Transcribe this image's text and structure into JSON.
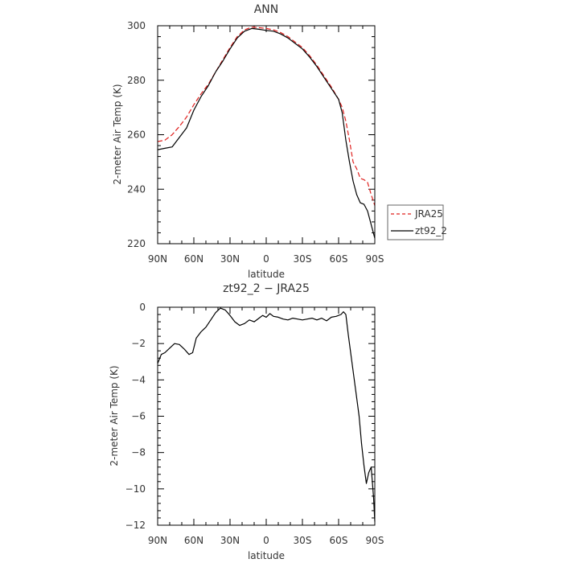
{
  "chart_data": [
    {
      "type": "line",
      "title": "ANN",
      "xlabel": "latitude",
      "ylabel": "2-meter Air Temp (K)",
      "xlim": [
        90,
        -90
      ],
      "ylim": [
        220,
        300
      ],
      "xticks": [
        90,
        60,
        30,
        0,
        -30,
        -60,
        -90
      ],
      "xticklabels": [
        "90N",
        "60N",
        "30N",
        "0",
        "30S",
        "60S",
        "90S"
      ],
      "yticks": [
        220,
        240,
        260,
        280,
        300
      ],
      "yticklabels": [
        "220",
        "240",
        "260",
        "280",
        "300"
      ],
      "legend": "right, outside",
      "series": [
        {
          "name": "JRA25",
          "color": "#e0211f",
          "dash": "dashed",
          "x": [
            90,
            84,
            78,
            72,
            66,
            60,
            54,
            48,
            42,
            36,
            30,
            24,
            18,
            12,
            6,
            0,
            -6,
            -12,
            -18,
            -24,
            -30,
            -36,
            -42,
            -48,
            -54,
            -60,
            -63,
            -66,
            -69,
            -72,
            -75,
            -78,
            -81,
            -84,
            -87,
            -90
          ],
          "y": [
            257.5,
            258,
            260,
            263,
            266.5,
            271,
            275,
            278.5,
            283,
            287.5,
            292,
            296,
            298.5,
            299.5,
            299.3,
            299,
            298.5,
            297.5,
            296,
            294,
            292,
            289,
            285.5,
            281.5,
            277.5,
            273,
            270,
            265,
            258,
            250,
            247.5,
            244,
            243.5,
            242.5,
            238,
            234
          ]
        },
        {
          "name": "zt92_2",
          "color": "#000000",
          "dash": "solid",
          "x": [
            90,
            84,
            78,
            72,
            66,
            60,
            54,
            48,
            42,
            36,
            30,
            24,
            18,
            12,
            6,
            0,
            -6,
            -12,
            -18,
            -24,
            -30,
            -36,
            -42,
            -48,
            -54,
            -60,
            -63,
            -66,
            -69,
            -72,
            -75,
            -78,
            -81,
            -84,
            -87,
            -90
          ],
          "y": [
            254.5,
            255,
            255.5,
            259,
            262.5,
            269,
            274,
            278,
            283,
            287,
            291.5,
            295.5,
            298,
            299,
            298.7,
            298.3,
            298,
            297,
            295.5,
            293.5,
            291.5,
            288.5,
            285,
            281,
            277,
            273,
            268,
            258,
            250,
            243,
            238,
            235,
            234.5,
            232,
            227,
            222
          ]
        }
      ]
    },
    {
      "type": "line",
      "title": "zt92_2 − JRA25",
      "xlabel": "latitude",
      "ylabel": "2-meter Air Temp (K)",
      "xlim": [
        90,
        -90
      ],
      "ylim": [
        -12,
        0
      ],
      "xticks": [
        90,
        60,
        30,
        0,
        -30,
        -60,
        -90
      ],
      "xticklabels": [
        "90N",
        "60N",
        "30N",
        "0",
        "30S",
        "60S",
        "90S"
      ],
      "yticks": [
        -12,
        -10,
        -8,
        -6,
        -4,
        -2,
        0
      ],
      "yticklabels": [
        "−12",
        "−10",
        "−8",
        "−6",
        "−4",
        "−2",
        "0"
      ],
      "series": [
        {
          "color": "#000000",
          "dash": "solid",
          "x": [
            90,
            87,
            84,
            80,
            76,
            72,
            68,
            64,
            61,
            58,
            54,
            50,
            46,
            42,
            38,
            34,
            30,
            26,
            22,
            18,
            14,
            10,
            6,
            3,
            0,
            -3,
            -6,
            -10,
            -14,
            -18,
            -22,
            -26,
            -30,
            -34,
            -38,
            -42,
            -46,
            -50,
            -54,
            -58,
            -62,
            -64,
            -66,
            -68,
            -71,
            -74,
            -77,
            -79,
            -81,
            -83,
            -85,
            -87,
            -89,
            -90
          ],
          "y": [
            -3.1,
            -2.6,
            -2.5,
            -2.25,
            -2.0,
            -2.05,
            -2.3,
            -2.6,
            -2.5,
            -1.7,
            -1.35,
            -1.1,
            -0.7,
            -0.3,
            -0.05,
            -0.15,
            -0.45,
            -0.8,
            -1.0,
            -0.9,
            -0.7,
            -0.8,
            -0.6,
            -0.45,
            -0.55,
            -0.35,
            -0.5,
            -0.55,
            -0.65,
            -0.7,
            -0.6,
            -0.65,
            -0.7,
            -0.65,
            -0.6,
            -0.7,
            -0.6,
            -0.75,
            -0.55,
            -0.5,
            -0.4,
            -0.25,
            -0.4,
            -1.5,
            -3.0,
            -4.5,
            -6.0,
            -7.5,
            -8.7,
            -9.7,
            -9.1,
            -8.8,
            -10.5,
            -11.8
          ]
        }
      ]
    }
  ]
}
